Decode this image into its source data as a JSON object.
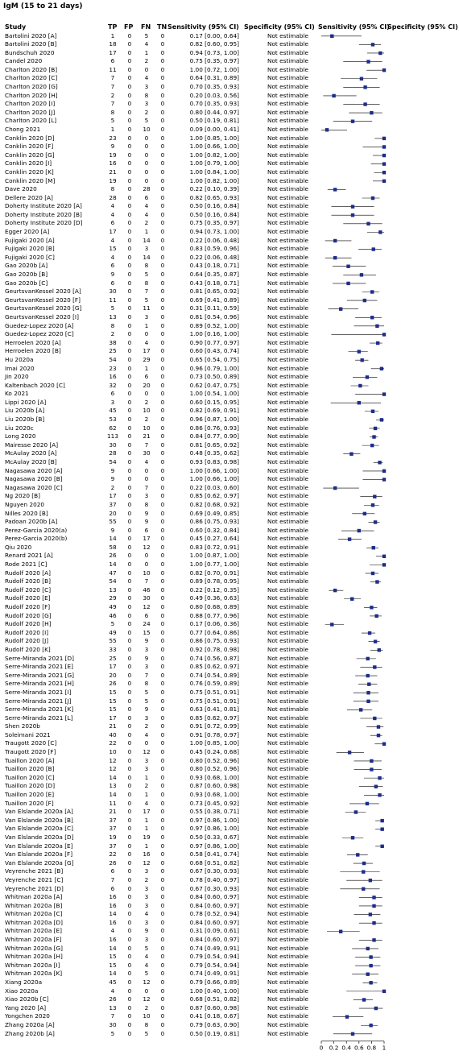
{
  "title": "IgM (15 to 21 days)",
  "headers": {
    "study": "Study",
    "tp": "TP",
    "fp": "FP",
    "fn": "FN",
    "tn": "TN",
    "sensitivity": "Sensitivity (95% CI)",
    "specificity": "Specificity (95% CI)",
    "sens_plot": "Sensitivity (95% CI)",
    "spec_plot": "Specificity (95% CI)"
  },
  "not_estimable": "Not estimable",
  "colors": {
    "marker": "#1f2d8a",
    "line": "#000000"
  },
  "chart_data": {
    "type": "forest",
    "x_axis": {
      "ticks": [
        "0",
        "0.2",
        "0.4",
        "0.6",
        "0.8",
        "1"
      ],
      "xlim": [
        0,
        1
      ]
    },
    "rows": [
      [
        "Bartolini 2020 [A]",
        1,
        0,
        5,
        0,
        "0.17 [0.00, 0.64]",
        0.17,
        0.0,
        0.64
      ],
      [
        "Bartolini 2020 [B]",
        18,
        0,
        4,
        0,
        "0.82 [0.60, 0.95]",
        0.82,
        0.6,
        0.95
      ],
      [
        "Bundschuh 2020",
        17,
        0,
        1,
        0,
        "0.94 [0.73, 1.00]",
        0.94,
        0.73,
        1.0
      ],
      [
        "Candel 2020",
        6,
        0,
        2,
        0,
        "0.75 [0.35, 0.97]",
        0.75,
        0.35,
        0.97
      ],
      [
        "Charlton 2020 [B]",
        11,
        0,
        0,
        0,
        "1.00 [0.72, 1.00]",
        1.0,
        0.72,
        1.0
      ],
      [
        "Charlton 2020 [C]",
        7,
        0,
        4,
        0,
        "0.64 [0.31, 0.89]",
        0.64,
        0.31,
        0.89
      ],
      [
        "Charlton 2020 [G]",
        7,
        0,
        3,
        0,
        "0.70 [0.35, 0.93]",
        0.7,
        0.35,
        0.93
      ],
      [
        "Charlton 2020 [H]",
        2,
        0,
        8,
        0,
        "0.20 [0.03, 0.56]",
        0.2,
        0.03,
        0.56
      ],
      [
        "Charlton 2020 [I]",
        7,
        0,
        3,
        0,
        "0.70 [0.35, 0.93]",
        0.7,
        0.35,
        0.93
      ],
      [
        "Charlton 2020 [J]",
        8,
        0,
        2,
        0,
        "0.80 [0.44, 0.97]",
        0.8,
        0.44,
        0.97
      ],
      [
        "Charlton 2020 [L]",
        5,
        0,
        5,
        0,
        "0.50 [0.19, 0.81]",
        0.5,
        0.19,
        0.81
      ],
      [
        "Chong 2021",
        1,
        0,
        10,
        0,
        "0.09 [0.00, 0.41]",
        0.09,
        0.0,
        0.41
      ],
      [
        "Conklin 2020 [D]",
        23,
        0,
        0,
        0,
        "1.00 [0.85, 1.00]",
        1.0,
        0.85,
        1.0
      ],
      [
        "Conklin 2020 [F]",
        9,
        0,
        0,
        0,
        "1.00 [0.66, 1.00]",
        1.0,
        0.66,
        1.0
      ],
      [
        "Conklin 2020 [G]",
        19,
        0,
        0,
        0,
        "1.00 [0.82, 1.00]",
        1.0,
        0.82,
        1.0
      ],
      [
        "Conklin 2020 [I]",
        16,
        0,
        0,
        0,
        "1.00 [0.79, 1.00]",
        1.0,
        0.79,
        1.0
      ],
      [
        "Conklin 2020 [K]",
        21,
        0,
        0,
        0,
        "1.00 [0.84, 1.00]",
        1.0,
        0.84,
        1.0
      ],
      [
        "Conklin 2020 [M]",
        19,
        0,
        0,
        0,
        "1.00 [0.82, 1.00]",
        1.0,
        0.82,
        1.0
      ],
      [
        "Dave 2020",
        8,
        0,
        28,
        0,
        "0.22 [0.10, 0.39]",
        0.22,
        0.1,
        0.39
      ],
      [
        "Dellere 2020 [A]",
        28,
        0,
        6,
        0,
        "0.82 [0.65, 0.93]",
        0.82,
        0.65,
        0.93
      ],
      [
        "Doherty Institute 2020 [A]",
        4,
        0,
        4,
        0,
        "0.50 [0.16, 0.84]",
        0.5,
        0.16,
        0.84
      ],
      [
        "Doherty Institute 2020 [B]",
        4,
        0,
        4,
        0,
        "0.50 [0.16, 0.84]",
        0.5,
        0.16,
        0.84
      ],
      [
        "Doherty Institute 2020 [D]",
        6,
        0,
        2,
        0,
        "0.75 [0.35, 0.97]",
        0.75,
        0.35,
        0.97
      ],
      [
        "Egger 2020 [A]",
        17,
        0,
        1,
        0,
        "0.94 [0.73, 1.00]",
        0.94,
        0.73,
        1.0
      ],
      [
        "Fujigaki 2020 [A]",
        4,
        0,
        14,
        0,
        "0.22 [0.06, 0.48]",
        0.22,
        0.06,
        0.48
      ],
      [
        "Fujigaki 2020 [B]",
        15,
        0,
        3,
        0,
        "0.83 [0.59, 0.96]",
        0.83,
        0.59,
        0.96
      ],
      [
        "Fujigaki 2020 [C]",
        4,
        0,
        14,
        0,
        "0.22 [0.06, 0.48]",
        0.22,
        0.06,
        0.48
      ],
      [
        "Gao 2020b [A]",
        6,
        0,
        8,
        0,
        "0.43 [0.18, 0.71]",
        0.43,
        0.18,
        0.71
      ],
      [
        "Gao 2020b [B]",
        9,
        0,
        5,
        0,
        "0.64 [0.35, 0.87]",
        0.64,
        0.35,
        0.87
      ],
      [
        "Gao 2020b [C]",
        6,
        0,
        8,
        0,
        "0.43 [0.18, 0.71]",
        0.43,
        0.18,
        0.71
      ],
      [
        "GeurtsvanKessel 2020 [A]",
        30,
        0,
        7,
        0,
        "0.81 [0.65, 0.92]",
        0.81,
        0.65,
        0.92
      ],
      [
        "GeurtsvanKessel 2020 [F]",
        11,
        0,
        5,
        0,
        "0.69 [0.41, 0.89]",
        0.69,
        0.41,
        0.89
      ],
      [
        "GeurtsvanKessel 2020 [G]",
        5,
        0,
        11,
        0,
        "0.31 [0.11, 0.59]",
        0.31,
        0.11,
        0.59
      ],
      [
        "GeurtsvanKessel 2020 [I]",
        13,
        0,
        3,
        0,
        "0.81 [0.54, 0.96]",
        0.81,
        0.54,
        0.96
      ],
      [
        "Guedez-Lopez 2020 [A]",
        8,
        0,
        1,
        0,
        "0.89 [0.52, 1.00]",
        0.89,
        0.52,
        1.0
      ],
      [
        "Guedez-Lopez 2020 [C]",
        2,
        0,
        0,
        0,
        "1.00 [0.16, 1.00]",
        1.0,
        0.16,
        1.0
      ],
      [
        "Herroelen 2020 [A]",
        38,
        0,
        4,
        0,
        "0.90 [0.77, 0.97]",
        0.9,
        0.77,
        0.97
      ],
      [
        "Herroelen 2020 [B]",
        25,
        0,
        17,
        0,
        "0.60 [0.43, 0.74]",
        0.6,
        0.43,
        0.74
      ],
      [
        "Hu 2020a",
        54,
        0,
        29,
        0,
        "0.65 [0.54, 0.75]",
        0.65,
        0.54,
        0.75
      ],
      [
        "Imai 2020",
        23,
        0,
        1,
        0,
        "0.96 [0.79, 1.00]",
        0.96,
        0.79,
        1.0
      ],
      [
        "Jin 2020",
        16,
        0,
        6,
        0,
        "0.73 [0.50, 0.89]",
        0.73,
        0.5,
        0.89
      ],
      [
        "Kaltenbach 2020 [C]",
        32,
        0,
        20,
        0,
        "0.62 [0.47, 0.75]",
        0.62,
        0.47,
        0.75
      ],
      [
        "Ko 2021",
        6,
        0,
        0,
        0,
        "1.00 [0.54, 1.00]",
        1.0,
        0.54,
        1.0
      ],
      [
        "Lippi 2020 [A]",
        3,
        0,
        2,
        0,
        "0.60 [0.15, 0.95]",
        0.6,
        0.15,
        0.95
      ],
      [
        "Liu 2020b [A]",
        45,
        0,
        10,
        0,
        "0.82 [0.69, 0.91]",
        0.82,
        0.69,
        0.91
      ],
      [
        "Liu 2020b [B]",
        53,
        0,
        2,
        0,
        "0.96 [0.87, 1.00]",
        0.96,
        0.87,
        1.0
      ],
      [
        "Liu 2020c",
        62,
        0,
        10,
        0,
        "0.86 [0.76, 0.93]",
        0.86,
        0.76,
        0.93
      ],
      [
        "Long 2020",
        113,
        0,
        21,
        0,
        "0.84 [0.77, 0.90]",
        0.84,
        0.77,
        0.9
      ],
      [
        "Mairesse 2020 [A]",
        30,
        0,
        7,
        0,
        "0.81 [0.65, 0.92]",
        0.81,
        0.65,
        0.92
      ],
      [
        "McAulay 2020 [A]",
        28,
        0,
        30,
        0,
        "0.48 [0.35, 0.62]",
        0.48,
        0.35,
        0.62
      ],
      [
        "McAulay 2020 [B]",
        54,
        0,
        4,
        0,
        "0.93 [0.83, 0.98]",
        0.93,
        0.83,
        0.98
      ],
      [
        "Nagasawa 2020 [A]",
        9,
        0,
        0,
        0,
        "1.00 [0.66, 1.00]",
        1.0,
        0.66,
        1.0
      ],
      [
        "Nagasawa 2020 [B]",
        9,
        0,
        0,
        0,
        "1.00 [0.66, 1.00]",
        1.0,
        0.66,
        1.0
      ],
      [
        "Nagasawa 2020 [C]",
        2,
        0,
        7,
        0,
        "0.22 [0.03, 0.60]",
        0.22,
        0.03,
        0.6
      ],
      [
        "Ng 2020 [B]",
        17,
        0,
        3,
        0,
        "0.85 [0.62, 0.97]",
        0.85,
        0.62,
        0.97
      ],
      [
        "Nguyen 2020",
        37,
        0,
        8,
        0,
        "0.82 [0.68, 0.92]",
        0.82,
        0.68,
        0.92
      ],
      [
        "Nilles 2020 [B]",
        20,
        0,
        9,
        0,
        "0.69 [0.49, 0.85]",
        0.69,
        0.49,
        0.85
      ],
      [
        "Padoan 2020b [A]",
        55,
        0,
        9,
        0,
        "0.86 [0.75, 0.93]",
        0.86,
        0.75,
        0.93
      ],
      [
        "Perez-Garcia 2020(a)",
        9,
        0,
        6,
        0,
        "0.60 [0.32, 0.84]",
        0.6,
        0.32,
        0.84
      ],
      [
        "Perez-Garcia 2020(b)",
        14,
        0,
        17,
        0,
        "0.45 [0.27, 0.64]",
        0.45,
        0.27,
        0.64
      ],
      [
        "Qiu 2020",
        58,
        0,
        12,
        0,
        "0.83 [0.72, 0.91]",
        0.83,
        0.72,
        0.91
      ],
      [
        "Renard 2021 [A]",
        26,
        0,
        0,
        0,
        "1.00 [0.87, 1.00]",
        1.0,
        0.87,
        1.0
      ],
      [
        "Rode 2021 [C]",
        14,
        0,
        0,
        0,
        "1.00 [0.77, 1.00]",
        1.0,
        0.77,
        1.0
      ],
      [
        "Rudolf 2020 [A]",
        47,
        0,
        10,
        0,
        "0.82 [0.70, 0.91]",
        0.82,
        0.7,
        0.91
      ],
      [
        "Rudolf 2020 [B]",
        54,
        0,
        7,
        0,
        "0.89 [0.78, 0.95]",
        0.89,
        0.78,
        0.95
      ],
      [
        "Rudolf 2020 [C]",
        13,
        0,
        46,
        0,
        "0.22 [0.12, 0.35]",
        0.22,
        0.12,
        0.35
      ],
      [
        "Rudolf 2020 [E]",
        29,
        0,
        30,
        0,
        "0.49 [0.36, 0.63]",
        0.49,
        0.36,
        0.63
      ],
      [
        "Rudolf 2020 [F]",
        49,
        0,
        12,
        0,
        "0.80 [0.68, 0.89]",
        0.8,
        0.68,
        0.89
      ],
      [
        "Rudolf 2020 [G]",
        46,
        0,
        6,
        0,
        "0.88 [0.77, 0.96]",
        0.88,
        0.77,
        0.96
      ],
      [
        "Rudolf 2020 [H]",
        5,
        0,
        24,
        0,
        "0.17 [0.06, 0.36]",
        0.17,
        0.06,
        0.36
      ],
      [
        "Rudolf 2020 [I]",
        49,
        0,
        15,
        0,
        "0.77 [0.64, 0.86]",
        0.77,
        0.64,
        0.86
      ],
      [
        "Rudolf 2020 [J]",
        55,
        0,
        9,
        0,
        "0.86 [0.75, 0.93]",
        0.86,
        0.75,
        0.93
      ],
      [
        "Rudolf 2020 [K]",
        33,
        0,
        3,
        0,
        "0.92 [0.78, 0.98]",
        0.92,
        0.78,
        0.98
      ],
      [
        "Serre-Miranda 2021 [D]",
        25,
        0,
        9,
        0,
        "0.74 [0.56, 0.87]",
        0.74,
        0.56,
        0.87
      ],
      [
        "Serre-Miranda 2021 [E]",
        17,
        0,
        3,
        0,
        "0.85 [0.62, 0.97]",
        0.85,
        0.62,
        0.97
      ],
      [
        "Serre-Miranda 2021 [G]",
        20,
        0,
        7,
        0,
        "0.74 [0.54, 0.89]",
        0.74,
        0.54,
        0.89
      ],
      [
        "Serre-Miranda 2021 [H]",
        26,
        0,
        8,
        0,
        "0.76 [0.59, 0.89]",
        0.76,
        0.59,
        0.89
      ],
      [
        "Serre-Miranda 2021 [I]",
        15,
        0,
        5,
        0,
        "0.75 [0.51, 0.91]",
        0.75,
        0.51,
        0.91
      ],
      [
        "Serre-Miranda 2021 [J]",
        15,
        0,
        5,
        0,
        "0.75 [0.51, 0.91]",
        0.75,
        0.51,
        0.91
      ],
      [
        "Serre-Miranda 2021 [K]",
        15,
        0,
        9,
        0,
        "0.63 [0.41, 0.81]",
        0.63,
        0.41,
        0.81
      ],
      [
        "Serre-Miranda 2021 [L]",
        17,
        0,
        3,
        0,
        "0.85 [0.62, 0.97]",
        0.85,
        0.62,
        0.97
      ],
      [
        "Shen 2020b",
        21,
        0,
        2,
        0,
        "0.91 [0.72, 0.99]",
        0.91,
        0.72,
        0.99
      ],
      [
        "Soleimani 2021",
        40,
        0,
        4,
        0,
        "0.91 [0.78, 0.97]",
        0.91,
        0.78,
        0.97
      ],
      [
        "Traugott 2020 [C]",
        22,
        0,
        0,
        0,
        "1.00 [0.85, 1.00]",
        1.0,
        0.85,
        1.0
      ],
      [
        "Traugott 2020 [F]",
        10,
        0,
        12,
        0,
        "0.45 [0.24, 0.68]",
        0.45,
        0.24,
        0.68
      ],
      [
        "Tuaillon 2020 [A]",
        12,
        0,
        3,
        0,
        "0.80 [0.52, 0.96]",
        0.8,
        0.52,
        0.96
      ],
      [
        "Tuaillon 2020 [B]",
        12,
        0,
        3,
        0,
        "0.80 [0.52, 0.96]",
        0.8,
        0.52,
        0.96
      ],
      [
        "Tuaillon 2020 [C]",
        14,
        0,
        1,
        0,
        "0.93 [0.68, 1.00]",
        0.93,
        0.68,
        1.0
      ],
      [
        "Tuaillon 2020 [D]",
        13,
        0,
        2,
        0,
        "0.87 [0.60, 0.98]",
        0.87,
        0.6,
        0.98
      ],
      [
        "Tuaillon 2020 [E]",
        14,
        0,
        1,
        0,
        "0.93 [0.68, 1.00]",
        0.93,
        0.68,
        1.0
      ],
      [
        "Tuaillon 2020 [F]",
        11,
        0,
        4,
        0,
        "0.73 [0.45, 0.92]",
        0.73,
        0.45,
        0.92
      ],
      [
        "Van Elslande 2020a [A]",
        21,
        0,
        17,
        0,
        "0.55 [0.38, 0.71]",
        0.55,
        0.38,
        0.71
      ],
      [
        "Van Elslande 2020a [B]",
        37,
        0,
        1,
        0,
        "0.97 [0.86, 1.00]",
        0.97,
        0.86,
        1.0
      ],
      [
        "Van Elslande 2020a [C]",
        37,
        0,
        1,
        0,
        "0.97 [0.86, 1.00]",
        0.97,
        0.86,
        1.0
      ],
      [
        "Van Elslande 2020a [D]",
        19,
        0,
        19,
        0,
        "0.50 [0.33, 0.67]",
        0.5,
        0.33,
        0.67
      ],
      [
        "Van Elslande 2020a [E]",
        37,
        0,
        1,
        0,
        "0.97 [0.86, 1.00]",
        0.97,
        0.86,
        1.0
      ],
      [
        "Van Elslande 2020a [F]",
        22,
        0,
        16,
        0,
        "0.58 [0.41, 0.74]",
        0.58,
        0.41,
        0.74
      ],
      [
        "Van Elslande 2020a [G]",
        26,
        0,
        12,
        0,
        "0.68 [0.51, 0.82]",
        0.68,
        0.51,
        0.82
      ],
      [
        "Veyrenche 2021 [B]",
        6,
        0,
        3,
        0,
        "0.67 [0.30, 0.93]",
        0.67,
        0.3,
        0.93
      ],
      [
        "Veyrenche 2021 [C]",
        7,
        0,
        2,
        0,
        "0.78 [0.40, 0.97]",
        0.78,
        0.4,
        0.97
      ],
      [
        "Veyrenche 2021 [D]",
        6,
        0,
        3,
        0,
        "0.67 [0.30, 0.93]",
        0.67,
        0.3,
        0.93
      ],
      [
        "Whitman 2020a [A]",
        16,
        0,
        3,
        0,
        "0.84 [0.60, 0.97]",
        0.84,
        0.6,
        0.97
      ],
      [
        "Whitman 2020a [B]",
        16,
        0,
        3,
        0,
        "0.84 [0.60, 0.97]",
        0.84,
        0.6,
        0.97
      ],
      [
        "Whitman 2020a [C]",
        14,
        0,
        4,
        0,
        "0.78 [0.52, 0.94]",
        0.78,
        0.52,
        0.94
      ],
      [
        "Whitman 2020a [D]",
        16,
        0,
        3,
        0,
        "0.84 [0.60, 0.97]",
        0.84,
        0.6,
        0.97
      ],
      [
        "Whitman 2020a [E]",
        4,
        0,
        9,
        0,
        "0.31 [0.09, 0.61]",
        0.31,
        0.09,
        0.61
      ],
      [
        "Whitman 2020a [F]",
        16,
        0,
        3,
        0,
        "0.84 [0.60, 0.97]",
        0.84,
        0.6,
        0.97
      ],
      [
        "Whitman 2020a [G]",
        14,
        0,
        5,
        0,
        "0.74 [0.49, 0.91]",
        0.74,
        0.49,
        0.91
      ],
      [
        "Whitman 2020a [H]",
        15,
        0,
        4,
        0,
        "0.79 [0.54, 0.94]",
        0.79,
        0.54,
        0.94
      ],
      [
        "Whitman 2020a [I]",
        15,
        0,
        4,
        0,
        "0.79 [0.54, 0.94]",
        0.79,
        0.54,
        0.94
      ],
      [
        "Whitman 2020a [K]",
        14,
        0,
        5,
        0,
        "0.74 [0.49, 0.91]",
        0.74,
        0.49,
        0.91
      ],
      [
        "Xiang 2020a",
        45,
        0,
        12,
        0,
        "0.79 [0.66, 0.89]",
        0.79,
        0.66,
        0.89
      ],
      [
        "Xiao 2020a",
        4,
        0,
        0,
        0,
        "1.00 [0.40, 1.00]",
        1.0,
        0.4,
        1.0
      ],
      [
        "Xiao 2020b [C]",
        26,
        0,
        12,
        0,
        "0.68 [0.51, 0.82]",
        0.68,
        0.51,
        0.82
      ],
      [
        "Yang 2020 [A]",
        13,
        0,
        2,
        0,
        "0.87 [0.60, 0.98]",
        0.87,
        0.6,
        0.98
      ],
      [
        "Yongchen 2020",
        7,
        0,
        10,
        0,
        "0.41 [0.18, 0.67]",
        0.41,
        0.18,
        0.67
      ],
      [
        "Zhang 2020a [A]",
        30,
        0,
        8,
        0,
        "0.79 [0.63, 0.90]",
        0.79,
        0.63,
        0.9
      ],
      [
        "Zhang 2020b [A]",
        5,
        0,
        5,
        0,
        "0.50 [0.19, 0.81]",
        0.5,
        0.19,
        0.81
      ]
    ]
  }
}
